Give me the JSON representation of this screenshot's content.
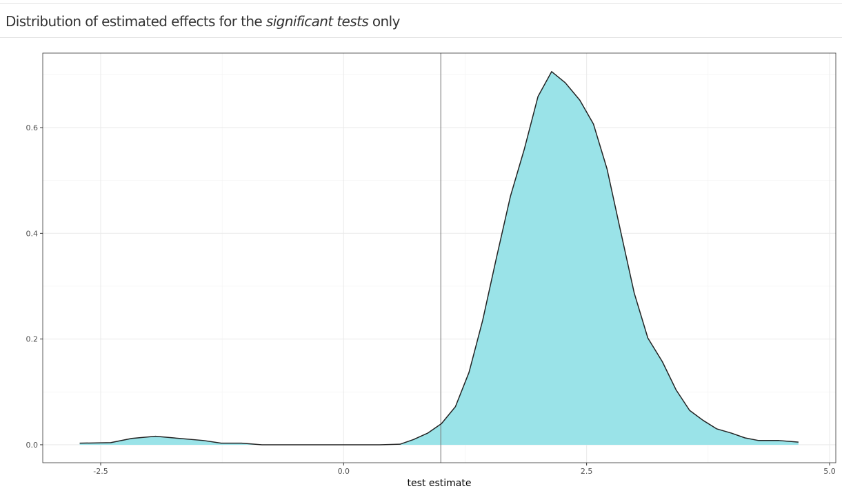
{
  "chart_data": {
    "type": "density",
    "title_parts": [
      "Distribution of estimated effects for the ",
      "significant tests",
      " only"
    ],
    "x_label": "test estimate",
    "x": [
      -2.716,
      -2.397,
      -2.18,
      -1.936,
      -1.69,
      -1.44,
      -1.26,
      -1.05,
      -0.84,
      -0.34,
      0.37,
      0.58,
      0.72,
      0.865,
      1.007,
      1.15,
      1.29,
      1.43,
      1.57,
      1.716,
      1.86,
      2.0,
      2.14,
      2.28,
      2.43,
      2.57,
      2.71,
      2.85,
      2.99,
      3.13,
      3.28,
      3.42,
      3.56,
      3.7,
      3.84,
      3.99,
      4.13,
      4.27,
      4.48,
      4.68
    ],
    "values": [
      0.003,
      0.004,
      0.012,
      0.016,
      0.012,
      0.008,
      0.003,
      0.003,
      0.0,
      0.0,
      0.0,
      0.001,
      0.01,
      0.022,
      0.04,
      0.072,
      0.137,
      0.235,
      0.352,
      0.47,
      0.56,
      0.659,
      0.706,
      0.685,
      0.652,
      0.607,
      0.522,
      0.404,
      0.287,
      0.202,
      0.157,
      0.104,
      0.065,
      0.046,
      0.03,
      0.022,
      0.013,
      0.008,
      0.008,
      0.005
    ],
    "fill": "#9ae3e8",
    "line_color": "#222222",
    "vline": 1.0,
    "xlim": [
      -3.096,
      5.064
    ],
    "ylim": [
      -0.034,
      0.741
    ],
    "xticks": [
      -2.5,
      {
        "value": 0,
        "label": "0.0"
      },
      2.5,
      {
        "value": 5,
        "label": "5.0"
      }
    ],
    "yticks": [
      {
        "value": 0,
        "label": "0.0"
      },
      0.2,
      0.4,
      0.6
    ],
    "x_minor_grid": [
      -1.25,
      1.25,
      3.75
    ],
    "y_minor_grid": [
      0.1,
      0.3,
      0.5,
      0.7
    ],
    "grid": true
  }
}
